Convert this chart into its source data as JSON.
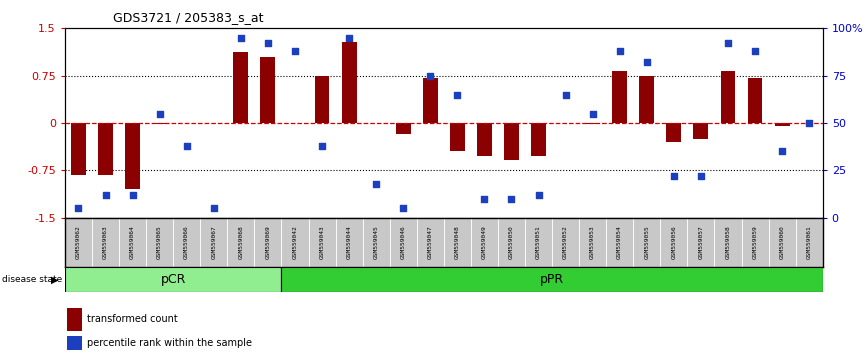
{
  "title": "GDS3721 / 205383_s_at",
  "samples": [
    "GSM559062",
    "GSM559063",
    "GSM559064",
    "GSM559065",
    "GSM559066",
    "GSM559067",
    "GSM559068",
    "GSM559069",
    "GSM559042",
    "GSM559043",
    "GSM559044",
    "GSM559045",
    "GSM559046",
    "GSM559047",
    "GSM559048",
    "GSM559049",
    "GSM559050",
    "GSM559051",
    "GSM559052",
    "GSM559053",
    "GSM559054",
    "GSM559055",
    "GSM559056",
    "GSM559057",
    "GSM559058",
    "GSM559059",
    "GSM559060",
    "GSM559061"
  ],
  "transformed_count": [
    -0.82,
    -0.82,
    -1.05,
    -0.02,
    0.0,
    0.0,
    1.12,
    1.05,
    0.0,
    0.75,
    1.28,
    0.0,
    -0.18,
    0.72,
    -0.45,
    -0.52,
    -0.58,
    -0.52,
    0.0,
    -0.02,
    0.82,
    0.75,
    -0.3,
    -0.25,
    0.82,
    0.72,
    -0.05,
    0.0
  ],
  "percentile_rank": [
    5,
    12,
    12,
    55,
    38,
    5,
    95,
    92,
    88,
    38,
    95,
    18,
    5,
    75,
    65,
    10,
    10,
    12,
    65,
    55,
    88,
    82,
    22,
    22,
    92,
    88,
    35,
    50
  ],
  "pCR_count": 8,
  "pPR_count": 20,
  "ylim": [
    -1.5,
    1.5
  ],
  "yticks_left": [
    -1.5,
    -0.75,
    0,
    0.75,
    1.5
  ],
  "yticks_right": [
    0,
    25,
    50,
    75,
    100
  ],
  "bar_color": "#8B0000",
  "dot_color": "#1C3FBF",
  "hline_color": "#CC0000",
  "dotted_color": "#000000",
  "pCR_color": "#90EE90",
  "pPR_color": "#32CD32",
  "label_color_left": "#CC0000",
  "label_color_right": "#0000CC",
  "bg_color": "#C8C8C8",
  "legend_bar_color": "#8B0000",
  "legend_dot_color": "#1C3FBF"
}
